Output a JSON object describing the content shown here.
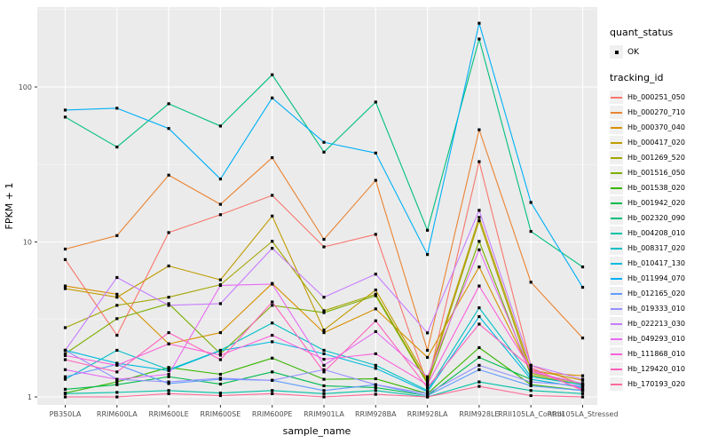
{
  "legend": {
    "quant_title": "quant_status",
    "quant_items": [
      {
        "label": "OK"
      }
    ],
    "tracking_title": "tracking_id"
  },
  "chart_data": {
    "type": "line",
    "title": "",
    "xlabel": "sample_name",
    "ylabel": "FPKM + 1",
    "y_scale": "log10",
    "ylim": [
      1,
      300
    ],
    "y_ticks": [
      1,
      10,
      100
    ],
    "y_tick_labels": [
      "1",
      "10",
      "100"
    ],
    "grid": "on",
    "panel_bg": "#EBEBEB",
    "grid_color": "#FFFFFF",
    "point_color": "#000000",
    "point_shape": "square",
    "legend_position": "right",
    "categories": [
      "PB350LA",
      "RRIM600LA",
      "RRIM600LE",
      "RRIM600SE",
      "RRIM600PE",
      "RRIM901LA",
      "RRIM928BA",
      "RRIM928LA",
      "RRIM928LE",
      "RRII105LA_Control",
      "RRII105LA_Stressed"
    ],
    "series": [
      {
        "name": "Hb_000251_050",
        "color": "#F8766D",
        "values": [
          7.7,
          2.5,
          11.5,
          15,
          20,
          9.3,
          11.2,
          1.2,
          33,
          1.6,
          1.2
        ]
      },
      {
        "name": "Hb_000270_710",
        "color": "#EA8331",
        "values": [
          9.0,
          11,
          27,
          17.5,
          35,
          10.4,
          25,
          2.0,
          53,
          5.5,
          2.4
        ]
      },
      {
        "name": "Hb_000370_040",
        "color": "#D89000",
        "values": [
          5.2,
          4.6,
          2.2,
          2.6,
          5.4,
          2.6,
          3.7,
          1.8,
          6.9,
          1.45,
          1.37
        ]
      },
      {
        "name": "Hb_000417_020",
        "color": "#C09B00",
        "values": [
          5.0,
          4.4,
          7.0,
          5.7,
          14.7,
          2.7,
          4.9,
          1.3,
          14.4,
          1.5,
          1.28
        ]
      },
      {
        "name": "Hb_001269_520",
        "color": "#A3A500",
        "values": [
          2.8,
          3.9,
          4.4,
          5.3,
          10.1,
          3.6,
          4.6,
          1.25,
          13.7,
          1.42,
          1.22
        ]
      },
      {
        "name": "Hb_001516_050",
        "color": "#7CAE00",
        "values": [
          1.9,
          3.2,
          4.0,
          1.9,
          3.9,
          3.5,
          4.5,
          1.22,
          10.1,
          1.38,
          1.2
        ]
      },
      {
        "name": "Hb_001538_020",
        "color": "#39B600",
        "values": [
          1.06,
          1.25,
          1.55,
          1.4,
          1.78,
          1.3,
          1.31,
          1.05,
          2.08,
          1.2,
          1.1
        ]
      },
      {
        "name": "Hb_001942_020",
        "color": "#00BB4E",
        "values": [
          1.12,
          1.2,
          1.35,
          1.21,
          1.45,
          1.18,
          1.15,
          1.02,
          1.8,
          1.3,
          1.15
        ]
      },
      {
        "name": "Hb_002320_090",
        "color": "#00BF7D",
        "values": [
          64,
          41,
          78,
          56,
          120,
          38,
          80,
          11.9,
          204,
          11.7,
          6.9
        ]
      },
      {
        "name": "Hb_004208_010",
        "color": "#00C1A7",
        "values": [
          1.05,
          1.07,
          1.1,
          1.06,
          1.1,
          1.05,
          1.1,
          1.0,
          1.25,
          1.1,
          1.05
        ]
      },
      {
        "name": "Hb_008317_020",
        "color": "#00BFC4",
        "values": [
          1.3,
          2.0,
          1.5,
          2.0,
          3.0,
          2.0,
          1.6,
          1.1,
          3.76,
          1.35,
          1.2
        ]
      },
      {
        "name": "Hb_010417_130",
        "color": "#00BAE0",
        "values": [
          2.0,
          1.65,
          1.48,
          1.99,
          2.27,
          1.9,
          1.53,
          1.08,
          3.3,
          1.3,
          1.15
        ]
      },
      {
        "name": "Hb_011994_070",
        "color": "#00B0F6",
        "values": [
          71,
          73,
          54,
          25.5,
          85,
          44,
          37.5,
          8.3,
          258,
          18,
          5.1
        ]
      },
      {
        "name": "Hb_012165_020",
        "color": "#619CFF",
        "values": [
          1.35,
          1.62,
          1.22,
          1.3,
          1.28,
          1.1,
          1.2,
          1.02,
          1.5,
          1.18,
          1.1
        ]
      },
      {
        "name": "Hb_019333_010",
        "color": "#9590FF",
        "values": [
          2.0,
          1.3,
          1.25,
          1.32,
          1.28,
          1.5,
          1.2,
          1.05,
          1.6,
          1.25,
          1.18
        ]
      },
      {
        "name": "Hb_022213_030",
        "color": "#C77CFF",
        "values": [
          2.0,
          5.9,
          3.9,
          4.0,
          9.1,
          4.4,
          6.2,
          2.59,
          16,
          1.6,
          1.3
        ]
      },
      {
        "name": "Hb_049293_010",
        "color": "#E76BF3",
        "values": [
          1.5,
          1.3,
          1.4,
          5.24,
          5.35,
          1.6,
          2.64,
          1.35,
          8.9,
          1.45,
          1.22
        ]
      },
      {
        "name": "Hb_111868_010",
        "color": "#FA62DB",
        "values": [
          1.85,
          1.6,
          2.2,
          1.86,
          2.5,
          1.75,
          1.9,
          1.2,
          5.2,
          1.5,
          1.12
        ]
      },
      {
        "name": "Hb_129420_010",
        "color": "#FF62BC",
        "values": [
          1.74,
          1.45,
          2.6,
          1.74,
          4.1,
          1.45,
          3.1,
          1.15,
          2.95,
          1.55,
          1.1
        ]
      },
      {
        "name": "Hb_170193_020",
        "color": "#FF6A98",
        "values": [
          1.0,
          1.0,
          1.05,
          1.02,
          1.05,
          1.0,
          1.04,
          1.0,
          1.17,
          1.02,
          1.0
        ]
      }
    ]
  }
}
